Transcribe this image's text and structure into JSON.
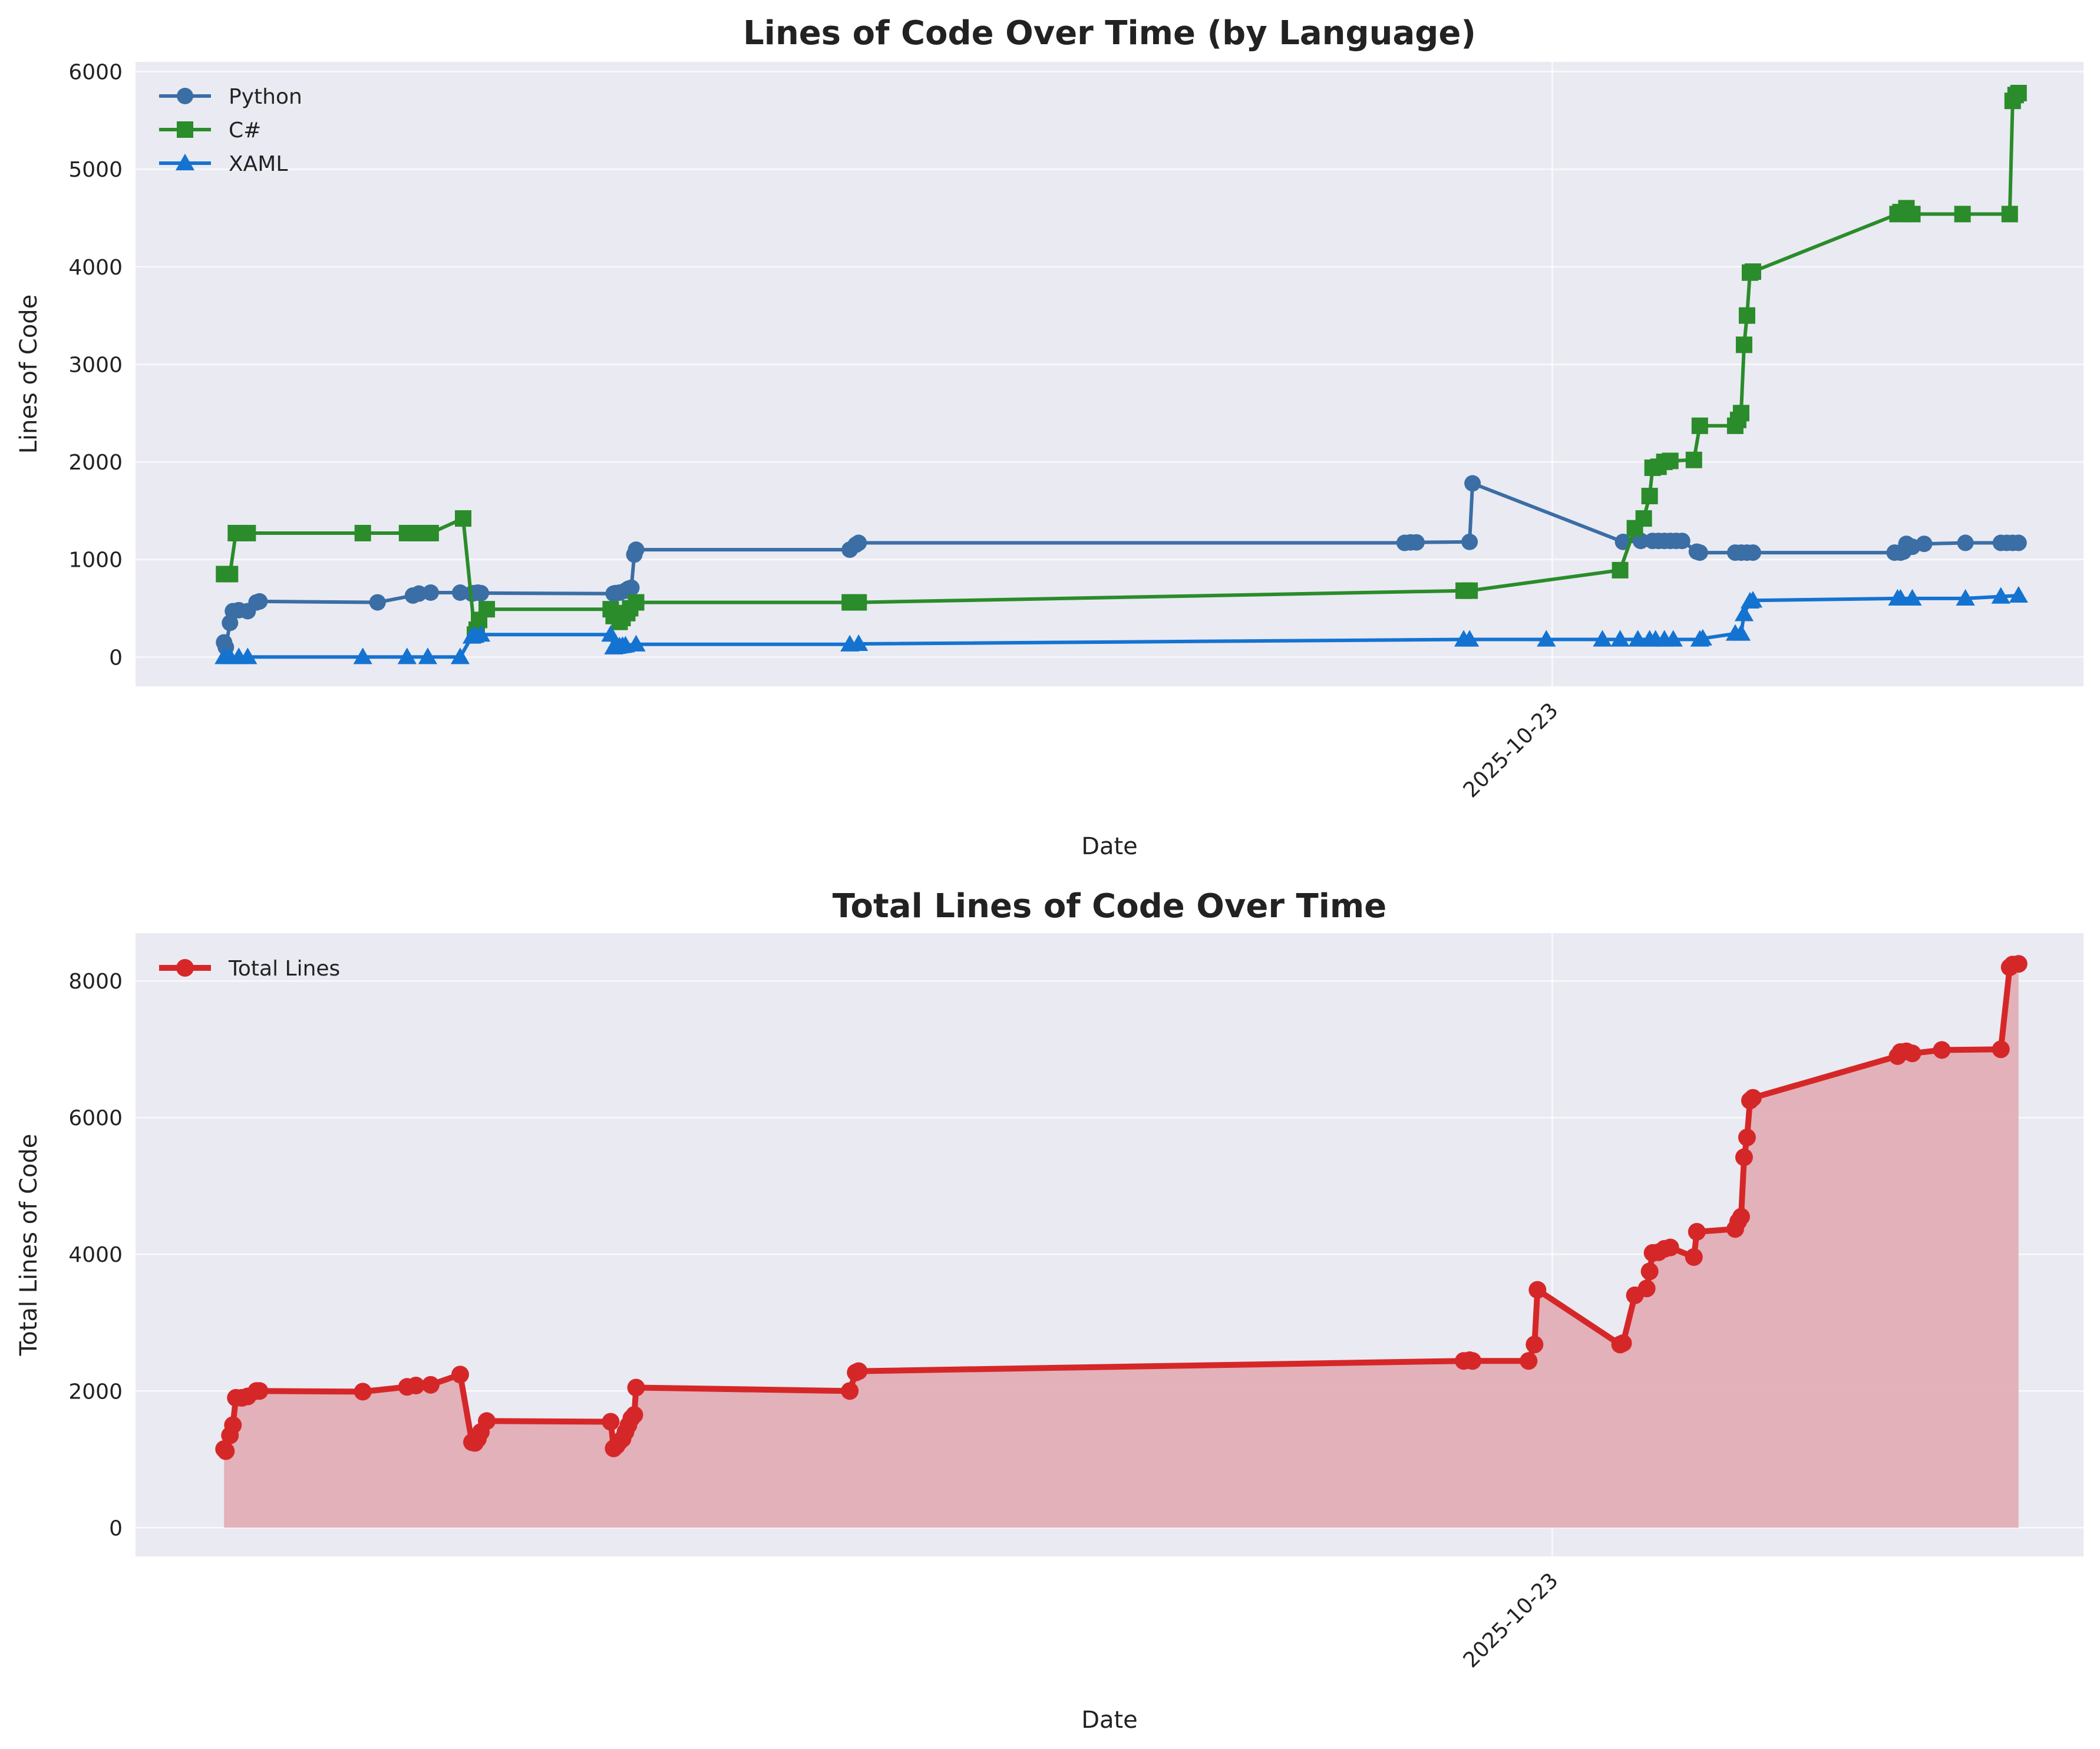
{
  "chart_data": [
    {
      "type": "line",
      "title": "Lines of Code Over Time (by Language)",
      "xlabel": "Date",
      "ylabel": "Lines of Code",
      "x_ticks": [
        "2025-10-23"
      ],
      "yticks": [
        0,
        1000,
        2000,
        3000,
        4000,
        5000,
        6000
      ],
      "ylim": [
        -300,
        6100
      ],
      "grid": true,
      "legend_position": "top-left",
      "series": [
        {
          "name": "Python",
          "color": "#3a6ea5",
          "marker": "circle",
          "points": [
            [
              0.0,
              150
            ],
            [
              0.3,
              100
            ],
            [
              1.0,
              350
            ],
            [
              1.5,
              470
            ],
            [
              2.5,
              480
            ],
            [
              4.0,
              470
            ],
            [
              5.5,
              560
            ],
            [
              6.0,
              570
            ],
            [
              26.0,
              560
            ],
            [
              32.0,
              630
            ],
            [
              33.0,
              650
            ],
            [
              35.0,
              660
            ],
            [
              40.0,
              660
            ],
            [
              42.0,
              650
            ],
            [
              42.3,
              655
            ],
            [
              43.0,
              660
            ],
            [
              43.5,
              655
            ],
            [
              66.0,
              650
            ],
            [
              66.3,
              655
            ],
            [
              67.0,
              660
            ],
            [
              68.0,
              680
            ],
            [
              68.5,
              700
            ],
            [
              69.0,
              710
            ],
            [
              69.5,
              1050
            ],
            [
              69.8,
              1100
            ],
            [
              106.0,
              1100
            ],
            [
              107.0,
              1150
            ],
            [
              107.5,
              1170
            ],
            [
              200.0,
              1170
            ],
            [
              201.0,
              1175
            ],
            [
              202.0,
              1175
            ],
            [
              211.0,
              1180
            ],
            [
              211.5,
              1780
            ],
            [
              237.0,
              1180
            ],
            [
              240.0,
              1190
            ],
            [
              242.0,
              1190
            ],
            [
              243.0,
              1190
            ],
            [
              244.0,
              1190
            ],
            [
              245.0,
              1190
            ],
            [
              246.0,
              1190
            ],
            [
              247.0,
              1190
            ],
            [
              249.5,
              1080
            ],
            [
              250.0,
              1070
            ],
            [
              256.0,
              1070
            ],
            [
              257.0,
              1070
            ],
            [
              258.0,
              1070
            ],
            [
              259.0,
              1070
            ],
            [
              283.0,
              1070
            ],
            [
              284.0,
              1070
            ],
            [
              284.5,
              1080
            ],
            [
              285.0,
              1160
            ],
            [
              286.0,
              1130
            ],
            [
              288.0,
              1160
            ],
            [
              295.0,
              1170
            ],
            [
              301.0,
              1170
            ],
            [
              302.0,
              1170
            ],
            [
              303.0,
              1170
            ],
            [
              304.0,
              1170
            ]
          ]
        },
        {
          "name": "C#",
          "color": "#2a8c2a",
          "marker": "square",
          "points": [
            [
              0.0,
              850
            ],
            [
              1.0,
              850
            ],
            [
              2.0,
              1270
            ],
            [
              4.0,
              1270
            ],
            [
              23.5,
              1270
            ],
            [
              31.0,
              1270
            ],
            [
              33.5,
              1270
            ],
            [
              35.0,
              1270
            ],
            [
              40.5,
              1420
            ],
            [
              42.5,
              230
            ],
            [
              42.8,
              280
            ],
            [
              43.2,
              380
            ],
            [
              44.5,
              490
            ],
            [
              65.5,
              490
            ],
            [
              66.0,
              420
            ],
            [
              67.0,
              360
            ],
            [
              67.5,
              400
            ],
            [
              68.3,
              450
            ],
            [
              68.8,
              500
            ],
            [
              69.8,
              560
            ],
            [
              106.0,
              560
            ],
            [
              107.5,
              560
            ],
            [
              210.0,
              680
            ],
            [
              211.0,
              680
            ],
            [
              236.5,
              890
            ],
            [
              239.0,
              1320
            ],
            [
              240.5,
              1420
            ],
            [
              241.5,
              1650
            ],
            [
              242.0,
              1940
            ],
            [
              243.0,
              1950
            ],
            [
              244.0,
              2000
            ],
            [
              245.0,
              2010
            ],
            [
              249.0,
              2020
            ],
            [
              250.0,
              2370
            ],
            [
              256.0,
              2370
            ],
            [
              256.5,
              2430
            ],
            [
              257.0,
              2500
            ],
            [
              257.5,
              3200
            ],
            [
              258.0,
              3500
            ],
            [
              258.5,
              3940
            ],
            [
              259.0,
              3950
            ],
            [
              283.5,
              4540
            ],
            [
              284.0,
              4560
            ],
            [
              285.0,
              4600
            ],
            [
              286.0,
              4540
            ],
            [
              294.5,
              4540
            ],
            [
              302.5,
              4540
            ],
            [
              303.0,
              5700
            ],
            [
              303.5,
              5760
            ],
            [
              304.0,
              5780
            ]
          ]
        },
        {
          "name": "XAML",
          "color": "#1473d1",
          "marker": "triangle",
          "points": [
            [
              0.0,
              0
            ],
            [
              1.0,
              0
            ],
            [
              2.5,
              0
            ],
            [
              4.0,
              0
            ],
            [
              23.5,
              0
            ],
            [
              31.0,
              0
            ],
            [
              34.5,
              0
            ],
            [
              40.0,
              0
            ],
            [
              42.0,
              210
            ],
            [
              42.5,
              220
            ],
            [
              43.5,
              230
            ],
            [
              65.5,
              230
            ],
            [
              66.0,
              100
            ],
            [
              66.5,
              105
            ],
            [
              67.0,
              110
            ],
            [
              67.5,
              115
            ],
            [
              68.0,
              120
            ],
            [
              69.8,
              130
            ],
            [
              106.0,
              130
            ],
            [
              107.5,
              135
            ],
            [
              210.0,
              180
            ],
            [
              211.0,
              180
            ],
            [
              224.0,
              180
            ],
            [
              233.5,
              180
            ],
            [
              236.5,
              180
            ],
            [
              239.5,
              180
            ],
            [
              241.5,
              180
            ],
            [
              242.5,
              180
            ],
            [
              244.0,
              180
            ],
            [
              245.5,
              180
            ],
            [
              250.0,
              180
            ],
            [
              250.5,
              190
            ],
            [
              256.0,
              240
            ],
            [
              257.0,
              240
            ],
            [
              257.5,
              440
            ],
            [
              258.5,
              570
            ],
            [
              259.0,
              580
            ],
            [
              283.5,
              600
            ],
            [
              284.0,
              600
            ],
            [
              286.0,
              600
            ],
            [
              295.0,
              600
            ],
            [
              301.0,
              620
            ],
            [
              304.0,
              630
            ]
          ]
        }
      ]
    },
    {
      "type": "area",
      "title": "Total Lines of Code Over Time",
      "xlabel": "Date",
      "ylabel": "Total Lines of Code",
      "x_ticks": [
        "2025-10-23"
      ],
      "yticks": [
        0,
        2000,
        4000,
        6000,
        8000
      ],
      "ylim": [
        -420,
        8700
      ],
      "grid": true,
      "legend_position": "top-left",
      "series": [
        {
          "name": "Total Lines",
          "color": "#d62728",
          "fill_color": "#e3aeb5",
          "marker": "circle",
          "points": [
            [
              0.0,
              1150
            ],
            [
              0.3,
              1120
            ],
            [
              1.0,
              1350
            ],
            [
              1.5,
              1500
            ],
            [
              2.0,
              1900
            ],
            [
              3.0,
              1900
            ],
            [
              4.0,
              1920
            ],
            [
              5.5,
              2000
            ],
            [
              6.0,
              2000
            ],
            [
              23.5,
              1990
            ],
            [
              31.0,
              2060
            ],
            [
              32.5,
              2080
            ],
            [
              35.0,
              2090
            ],
            [
              40.0,
              2240
            ],
            [
              42.0,
              1250
            ],
            [
              42.5,
              1240
            ],
            [
              43.0,
              1300
            ],
            [
              43.5,
              1400
            ],
            [
              44.5,
              1560
            ],
            [
              65.5,
              1550
            ],
            [
              66.0,
              1160
            ],
            [
              66.5,
              1200
            ],
            [
              67.0,
              1260
            ],
            [
              67.5,
              1300
            ],
            [
              68.0,
              1400
            ],
            [
              68.5,
              1500
            ],
            [
              69.0,
              1600
            ],
            [
              69.5,
              1650
            ],
            [
              69.8,
              2050
            ],
            [
              106.0,
              2000
            ],
            [
              107.0,
              2270
            ],
            [
              107.5,
              2290
            ],
            [
              210.0,
              2440
            ],
            [
              211.0,
              2450
            ],
            [
              211.5,
              2440
            ],
            [
              221.0,
              2440
            ],
            [
              222.0,
              2680
            ],
            [
              222.5,
              3480
            ],
            [
              236.5,
              2680
            ],
            [
              237.0,
              2700
            ],
            [
              239.0,
              3400
            ],
            [
              241.0,
              3500
            ],
            [
              241.5,
              3750
            ],
            [
              242.0,
              4020
            ],
            [
              243.0,
              4030
            ],
            [
              244.0,
              4080
            ],
            [
              245.0,
              4100
            ],
            [
              249.0,
              3960
            ],
            [
              249.5,
              4330
            ],
            [
              256.0,
              4370
            ],
            [
              256.5,
              4480
            ],
            [
              257.0,
              4550
            ],
            [
              257.5,
              5420
            ],
            [
              258.0,
              5710
            ],
            [
              258.5,
              6250
            ],
            [
              259.0,
              6290
            ],
            [
              283.5,
              6900
            ],
            [
              284.0,
              6960
            ],
            [
              285.0,
              6970
            ],
            [
              286.0,
              6940
            ],
            [
              291.0,
              6990
            ],
            [
              301.0,
              7000
            ],
            [
              302.5,
              8200
            ],
            [
              303.0,
              8240
            ],
            [
              304.0,
              8250
            ]
          ]
        }
      ]
    }
  ]
}
